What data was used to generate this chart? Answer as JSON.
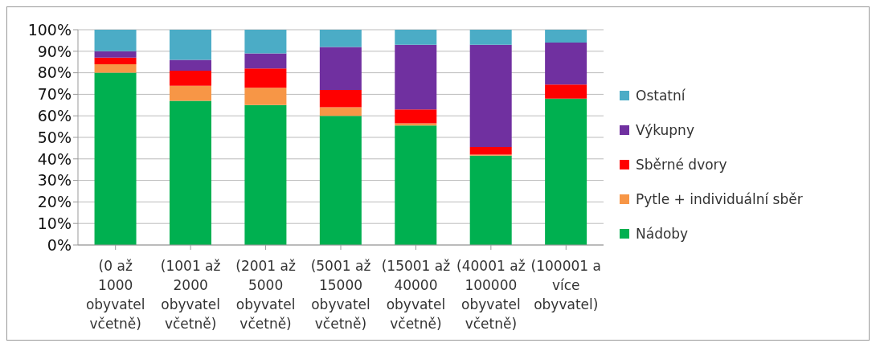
{
  "chart_data": {
    "type": "bar",
    "stacked": true,
    "categories": [
      "(0 až 1000 obyvatel včetně)",
      "(1001 až 2000 obyvatel včetně)",
      "(2001 až 5000 obyvatel včetně)",
      "(5001 až 15000 obyvatel včetně)",
      "(15001 až 40000 obyvatel včetně)",
      "(40001 až 100000 obyvatel včetně)",
      "(100001 a více obyvatel)"
    ],
    "series": [
      {
        "name": "Nádoby",
        "color": "#00b050",
        "values": [
          80,
          67,
          65,
          60,
          55.5,
          41.5,
          68
        ]
      },
      {
        "name": "Pytle + individuální sběr",
        "color": "#f79646",
        "values": [
          4,
          7,
          8,
          4,
          1,
          0.5,
          0
        ]
      },
      {
        "name": "Sběrné dvory",
        "color": "#ff0000",
        "values": [
          3,
          7,
          9,
          8,
          6.5,
          3.5,
          6.5
        ]
      },
      {
        "name": "Výkupny",
        "color": "#7030a0",
        "values": [
          3,
          5,
          7,
          20,
          30,
          47.5,
          19.5
        ]
      },
      {
        "name": "Ostatní",
        "color": "#4bacc6",
        "values": [
          10,
          14,
          11,
          8,
          7,
          7,
          6
        ]
      }
    ],
    "ylim": [
      0,
      100
    ],
    "yticks": [
      {
        "value": 0,
        "label": "0%"
      },
      {
        "value": 10,
        "label": "10%"
      },
      {
        "value": 20,
        "label": "20%"
      },
      {
        "value": 30,
        "label": "30%"
      },
      {
        "value": 40,
        "label": "40%"
      },
      {
        "value": 50,
        "label": "50%"
      },
      {
        "value": 60,
        "label": "60%"
      },
      {
        "value": 70,
        "label": "70%"
      },
      {
        "value": 80,
        "label": "80%"
      },
      {
        "value": 90,
        "label": "90%"
      },
      {
        "value": 100,
        "label": "100%"
      }
    ],
    "grid": "y",
    "legend": "right"
  }
}
